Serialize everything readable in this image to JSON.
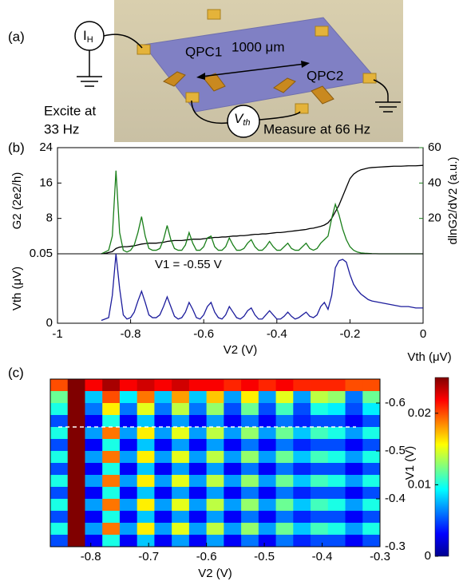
{
  "panels": [
    "(a)",
    "(b)",
    "(c)"
  ],
  "schematic": {
    "source": {
      "main": "I",
      "sub": "H"
    },
    "left_qpc": "QPC1",
    "length": "1000 μm",
    "right_qpc": "QPC2",
    "excite": [
      "Excite at",
      "33 Hz"
    ],
    "meter": {
      "main": "V",
      "sub": "th"
    },
    "measure": "Measure at 66 Hz"
  },
  "chart_data": [
    {
      "type": "line",
      "ylabel": "G2 (2e2/h)",
      "y2label": "dlnG2/dV2 (a.u.)",
      "x": [
        -0.88,
        -0.87,
        -0.86,
        -0.85,
        -0.84,
        -0.83,
        -0.82,
        -0.81,
        -0.8,
        -0.79,
        -0.78,
        -0.77,
        -0.76,
        -0.75,
        -0.74,
        -0.73,
        -0.72,
        -0.71,
        -0.7,
        -0.69,
        -0.68,
        -0.67,
        -0.66,
        -0.65,
        -0.64,
        -0.63,
        -0.62,
        -0.61,
        -0.6,
        -0.59,
        -0.58,
        -0.57,
        -0.56,
        -0.55,
        -0.54,
        -0.53,
        -0.52,
        -0.51,
        -0.5,
        -0.49,
        -0.48,
        -0.47,
        -0.46,
        -0.45,
        -0.44,
        -0.43,
        -0.42,
        -0.41,
        -0.4,
        -0.39,
        -0.38,
        -0.37,
        -0.36,
        -0.35,
        -0.34,
        -0.33,
        -0.32,
        -0.31,
        -0.3,
        -0.29,
        -0.28,
        -0.27,
        -0.26,
        -0.25,
        -0.24,
        -0.23,
        -0.22,
        -0.21,
        -0.2,
        -0.19,
        -0.18,
        -0.17,
        -0.16,
        -0.15,
        -0.14,
        -0.12,
        -0.1,
        -0.08,
        -0.06,
        -0.04,
        -0.02,
        0
      ],
      "xlim": [
        -1,
        0
      ],
      "ylim": [
        0,
        24
      ],
      "yticks": [
        8,
        16,
        24
      ],
      "y2lim": [
        0,
        60
      ],
      "y2ticks": [
        20,
        40,
        60
      ],
      "series": [
        {
          "color": "#000000",
          "values": [
            0,
            0.1,
            0.3,
            0.5,
            1.2,
            1.5,
            1.6,
            1.6,
            1.7,
            1.8,
            2,
            2.2,
            2.3,
            2.4,
            2.4,
            2.4,
            2.5,
            2.6,
            2.8,
            2.9,
            3,
            3,
            3,
            3.1,
            3.2,
            3.3,
            3.3,
            3.3,
            3.4,
            3.5,
            3.6,
            3.7,
            3.7,
            3.8,
            3.8,
            3.9,
            4,
            4,
            4.1,
            4.1,
            4.2,
            4.3,
            4.4,
            4.4,
            4.5,
            4.5,
            4.6,
            4.7,
            4.8,
            4.8,
            4.9,
            5,
            5.1,
            5.2,
            5.3,
            5.4,
            5.5,
            5.7,
            5.8,
            6,
            6.2,
            6.5,
            7,
            8,
            9.5,
            11,
            13,
            15,
            17,
            18,
            18.6,
            19,
            19.2,
            19.4,
            19.5,
            19.6,
            19.7,
            19.8,
            19.8,
            19.9,
            19.9,
            20
          ]
        },
        {
          "color": "#1a7f1a",
          "axis": "y2",
          "values": [
            0,
            1,
            2,
            10,
            47,
            12,
            2,
            1,
            2,
            5,
            12,
            21,
            10,
            3,
            2,
            2,
            3,
            8,
            16,
            8,
            3,
            2,
            2,
            5,
            12,
            6,
            2,
            2,
            4,
            9,
            10,
            4,
            2,
            2,
            4,
            9,
            5,
            2,
            2,
            3,
            6,
            8,
            4,
            2,
            2,
            4,
            7,
            4,
            2,
            2,
            4,
            6,
            3,
            2,
            2,
            4,
            6,
            3,
            2,
            3,
            6,
            8,
            10,
            20,
            28,
            22,
            14,
            8,
            4,
            2,
            1,
            0.5,
            0.3,
            0.2,
            0.1,
            0,
            0,
            0,
            0,
            0,
            0,
            0
          ]
        }
      ]
    },
    {
      "type": "line",
      "xlabel": "V2 (V)",
      "ylabel": "Vth (μV)",
      "annotation": "V1 = -0.55 V",
      "x": [
        -0.88,
        -0.87,
        -0.86,
        -0.85,
        -0.84,
        -0.83,
        -0.82,
        -0.81,
        -0.8,
        -0.79,
        -0.78,
        -0.77,
        -0.76,
        -0.75,
        -0.74,
        -0.73,
        -0.72,
        -0.71,
        -0.7,
        -0.69,
        -0.68,
        -0.67,
        -0.66,
        -0.65,
        -0.64,
        -0.63,
        -0.62,
        -0.61,
        -0.6,
        -0.59,
        -0.58,
        -0.57,
        -0.56,
        -0.55,
        -0.54,
        -0.53,
        -0.52,
        -0.51,
        -0.5,
        -0.49,
        -0.48,
        -0.47,
        -0.46,
        -0.45,
        -0.44,
        -0.43,
        -0.42,
        -0.41,
        -0.4,
        -0.39,
        -0.38,
        -0.37,
        -0.36,
        -0.35,
        -0.34,
        -0.33,
        -0.32,
        -0.31,
        -0.3,
        -0.29,
        -0.28,
        -0.27,
        -0.26,
        -0.25,
        -0.24,
        -0.23,
        -0.22,
        -0.21,
        -0.2,
        -0.19,
        -0.18,
        -0.17,
        -0.16,
        -0.15,
        -0.14,
        -0.12,
        -0.1,
        -0.08,
        -0.06,
        -0.04,
        -0.02,
        0
      ],
      "xlim": [
        -1,
        0
      ],
      "xticks": [
        -1,
        -0.8,
        -0.6,
        -0.4,
        -0.2,
        0
      ],
      "ylim": [
        0,
        0.05
      ],
      "yticks": [
        0,
        0.05
      ],
      "series": [
        {
          "color": "#1c1c9c",
          "values": [
            0.002,
            0.003,
            0.004,
            0.02,
            0.05,
            0.025,
            0.006,
            0.003,
            0.004,
            0.008,
            0.016,
            0.023,
            0.015,
            0.006,
            0.004,
            0.004,
            0.006,
            0.012,
            0.019,
            0.012,
            0.005,
            0.003,
            0.004,
            0.008,
            0.015,
            0.01,
            0.004,
            0.003,
            0.006,
            0.012,
            0.015,
            0.008,
            0.004,
            0.003,
            0.006,
            0.012,
            0.008,
            0.004,
            0.003,
            0.005,
            0.009,
            0.011,
            0.006,
            0.003,
            0.003,
            0.006,
            0.009,
            0.006,
            0.003,
            0.003,
            0.005,
            0.008,
            0.005,
            0.003,
            0.004,
            0.006,
            0.008,
            0.005,
            0.004,
            0.006,
            0.012,
            0.015,
            0.01,
            0.02,
            0.04,
            0.045,
            0.046,
            0.044,
            0.035,
            0.028,
            0.024,
            0.021,
            0.019,
            0.017,
            0.016,
            0.015,
            0.014,
            0.013,
            0.012,
            0.012,
            0.011,
            0.011
          ]
        }
      ]
    },
    {
      "type": "heatmap",
      "xlabel": "V2 (V)",
      "ylabel": "V1 (V)",
      "colorbar_label": "Vth (μV)",
      "colormap": "jet",
      "x": [
        -0.855,
        -0.825,
        -0.795,
        -0.765,
        -0.735,
        -0.705,
        -0.675,
        -0.645,
        -0.615,
        -0.585,
        -0.555,
        -0.525,
        -0.495,
        -0.465,
        -0.435,
        -0.405,
        -0.375,
        -0.345,
        -0.315
      ],
      "y": [
        -0.6375,
        -0.6125,
        -0.5875,
        -0.5625,
        -0.5375,
        -0.5125,
        -0.4875,
        -0.4625,
        -0.4375,
        -0.4125,
        -0.3875,
        -0.3625,
        -0.3375,
        -0.3125
      ],
      "z": [
        [
          0.02,
          0.025,
          0.022,
          0.024,
          0.022,
          0.023,
          0.022,
          0.023,
          0.022,
          0.022,
          0.021,
          0.022,
          0.021,
          0.022,
          0.021,
          0.021,
          0.021,
          0.02,
          0.02
        ],
        [
          0.012,
          0.025,
          0.008,
          0.02,
          0.009,
          0.019,
          0.008,
          0.018,
          0.008,
          0.017,
          0.007,
          0.016,
          0.007,
          0.015,
          0.007,
          0.014,
          0.013,
          0.006,
          0.012
        ],
        [
          0.01,
          0.025,
          0.006,
          0.016,
          0.006,
          0.015,
          0.006,
          0.014,
          0.006,
          0.013,
          0.005,
          0.012,
          0.005,
          0.011,
          0.005,
          0.01,
          0.009,
          0.005,
          0.009
        ],
        [
          0.005,
          0.025,
          0.003,
          0.01,
          0.003,
          0.008,
          0.003,
          0.007,
          0.003,
          0.007,
          0.003,
          0.006,
          0.003,
          0.006,
          0.004,
          0.005,
          0.005,
          0.003,
          0.005
        ],
        [
          0.01,
          0.025,
          0.007,
          0.019,
          0.007,
          0.016,
          0.007,
          0.015,
          0.007,
          0.014,
          0.007,
          0.013,
          0.007,
          0.012,
          0.008,
          0.011,
          0.01,
          0.007,
          0.01
        ],
        [
          0.005,
          0.025,
          0.003,
          0.01,
          0.003,
          0.008,
          0.003,
          0.007,
          0.003,
          0.007,
          0.003,
          0.006,
          0.003,
          0.006,
          0.004,
          0.005,
          0.005,
          0.003,
          0.005
        ],
        [
          0.01,
          0.025,
          0.007,
          0.019,
          0.007,
          0.016,
          0.007,
          0.015,
          0.007,
          0.014,
          0.007,
          0.013,
          0.007,
          0.012,
          0.008,
          0.011,
          0.01,
          0.007,
          0.01
        ],
        [
          0.005,
          0.025,
          0.003,
          0.01,
          0.003,
          0.008,
          0.003,
          0.007,
          0.003,
          0.007,
          0.003,
          0.006,
          0.003,
          0.006,
          0.004,
          0.005,
          0.005,
          0.003,
          0.005
        ],
        [
          0.01,
          0.025,
          0.007,
          0.019,
          0.007,
          0.016,
          0.007,
          0.015,
          0.007,
          0.014,
          0.007,
          0.013,
          0.007,
          0.012,
          0.008,
          0.011,
          0.01,
          0.007,
          0.01
        ],
        [
          0.005,
          0.025,
          0.003,
          0.01,
          0.003,
          0.008,
          0.003,
          0.007,
          0.003,
          0.007,
          0.003,
          0.006,
          0.003,
          0.006,
          0.004,
          0.005,
          0.005,
          0.003,
          0.005
        ],
        [
          0.01,
          0.025,
          0.007,
          0.019,
          0.007,
          0.016,
          0.007,
          0.015,
          0.007,
          0.014,
          0.007,
          0.013,
          0.007,
          0.012,
          0.008,
          0.011,
          0.01,
          0.007,
          0.01
        ],
        [
          0.005,
          0.025,
          0.003,
          0.01,
          0.003,
          0.008,
          0.003,
          0.007,
          0.003,
          0.007,
          0.003,
          0.006,
          0.003,
          0.006,
          0.004,
          0.005,
          0.005,
          0.003,
          0.005
        ],
        [
          0.01,
          0.025,
          0.007,
          0.019,
          0.007,
          0.016,
          0.007,
          0.015,
          0.007,
          0.014,
          0.007,
          0.013,
          0.007,
          0.012,
          0.008,
          0.011,
          0.01,
          0.007,
          0.01
        ],
        [
          0.005,
          0.025,
          0.003,
          0.01,
          0.003,
          0.008,
          0.003,
          0.007,
          0.003,
          0.007,
          0.003,
          0.006,
          0.003,
          0.006,
          0.004,
          0.005,
          0.005,
          0.003,
          0.005
        ]
      ],
      "xlim": [
        -0.87,
        -0.3
      ],
      "xticks": [
        -0.8,
        -0.7,
        -0.6,
        -0.5,
        -0.4,
        -0.3
      ],
      "ylim": [
        -0.3,
        -0.65
      ],
      "yticks": [
        -0.3,
        -0.4,
        -0.5,
        -0.6
      ],
      "zlim": [
        0,
        0.025
      ],
      "zticks": [
        0,
        0.01,
        0.02
      ],
      "hline": -0.55
    }
  ]
}
